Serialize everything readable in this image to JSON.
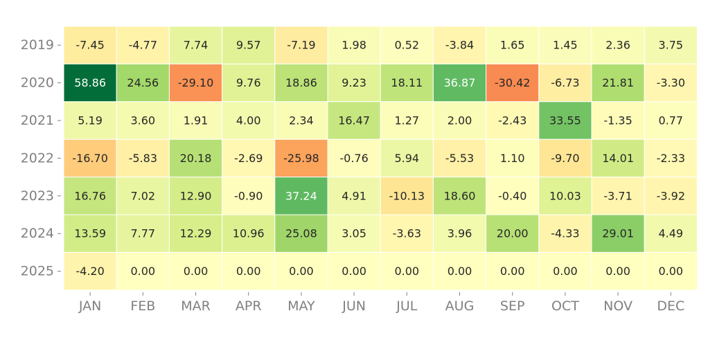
{
  "chart_data": {
    "type": "heatmap",
    "title": "",
    "xlabel": "",
    "ylabel": "",
    "x": [
      "JAN",
      "FEB",
      "MAR",
      "APR",
      "MAY",
      "JUN",
      "JUL",
      "AUG",
      "SEP",
      "OCT",
      "NOV",
      "DEC"
    ],
    "y": [
      "2019",
      "2020",
      "2021",
      "2022",
      "2023",
      "2024",
      "2025"
    ],
    "values": [
      [
        -7.45,
        -4.77,
        7.74,
        9.57,
        -7.19,
        1.98,
        0.52,
        -3.84,
        1.65,
        1.45,
        2.36,
        3.75
      ],
      [
        58.86,
        24.56,
        -29.1,
        9.76,
        18.86,
        9.23,
        18.11,
        36.87,
        -30.42,
        -6.73,
        21.81,
        -3.3
      ],
      [
        5.19,
        3.6,
        1.91,
        4.0,
        2.34,
        16.47,
        1.27,
        2.0,
        -2.43,
        33.55,
        -1.35,
        0.77
      ],
      [
        -16.7,
        -5.83,
        20.18,
        -2.69,
        -25.98,
        -0.76,
        5.94,
        -5.53,
        1.1,
        -9.7,
        14.01,
        -2.33
      ],
      [
        16.76,
        7.02,
        12.9,
        -0.9,
        37.24,
        4.91,
        -10.13,
        18.6,
        -0.4,
        10.03,
        -3.71,
        -3.92
      ],
      [
        13.59,
        7.77,
        12.29,
        10.96,
        25.08,
        3.05,
        -3.63,
        3.96,
        20.0,
        -4.33,
        29.01,
        4.49
      ],
      [
        -4.2,
        0.0,
        0.0,
        0.0,
        0.0,
        0.0,
        0.0,
        0.0,
        0.0,
        0.0,
        0.0,
        0.0
      ]
    ],
    "value_format": "2 decimals",
    "colormap": "RdYlGn",
    "value_range": [
      -60,
      60
    ],
    "grid": false,
    "legend": "none"
  }
}
